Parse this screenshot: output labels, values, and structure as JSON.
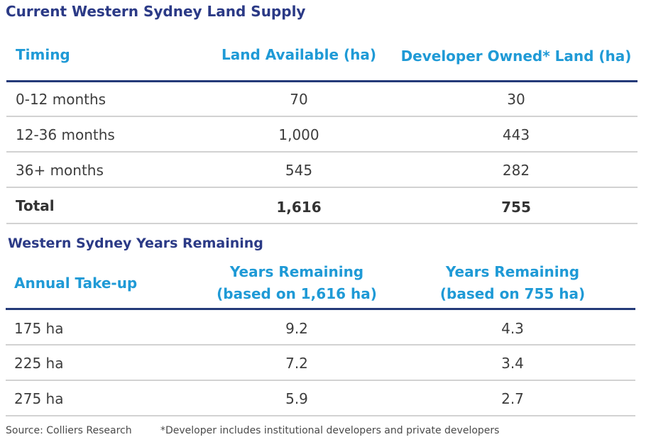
{
  "table1": {
    "title": "Current Western Sydney Land Supply",
    "headers": [
      "Timing",
      "Land Available (ha)",
      "Developer Owned* Land (ha)"
    ],
    "rows": [
      [
        "0-12 months",
        "70",
        "30"
      ],
      [
        "12-36 months",
        "1,000",
        "443"
      ],
      [
        "36+ months",
        "545",
        "282"
      ]
    ],
    "total": [
      "Total",
      "1,616",
      "755"
    ]
  },
  "table2": {
    "title": "Western Sydney Years Remaining",
    "headers": [
      "Annual Take-up",
      "Years Remaining\n(based on 1,616 ha)",
      "Years Remaining\n(based on 755 ha)"
    ],
    "rows": [
      [
        "175 ha",
        "9.2",
        "4.3"
      ],
      [
        "225 ha",
        "7.2",
        "3.4"
      ],
      [
        "275 ha",
        "5.9",
        "2.7"
      ]
    ]
  },
  "footer": {
    "source": "Source: Colliers Research",
    "note": "*Developer includes institutional developers and private developers"
  },
  "colors": {
    "title": "#2b3a86",
    "header": "#1f9ad6",
    "thick_rule": "#243a78",
    "thin_rule": "#d2d2d2"
  }
}
